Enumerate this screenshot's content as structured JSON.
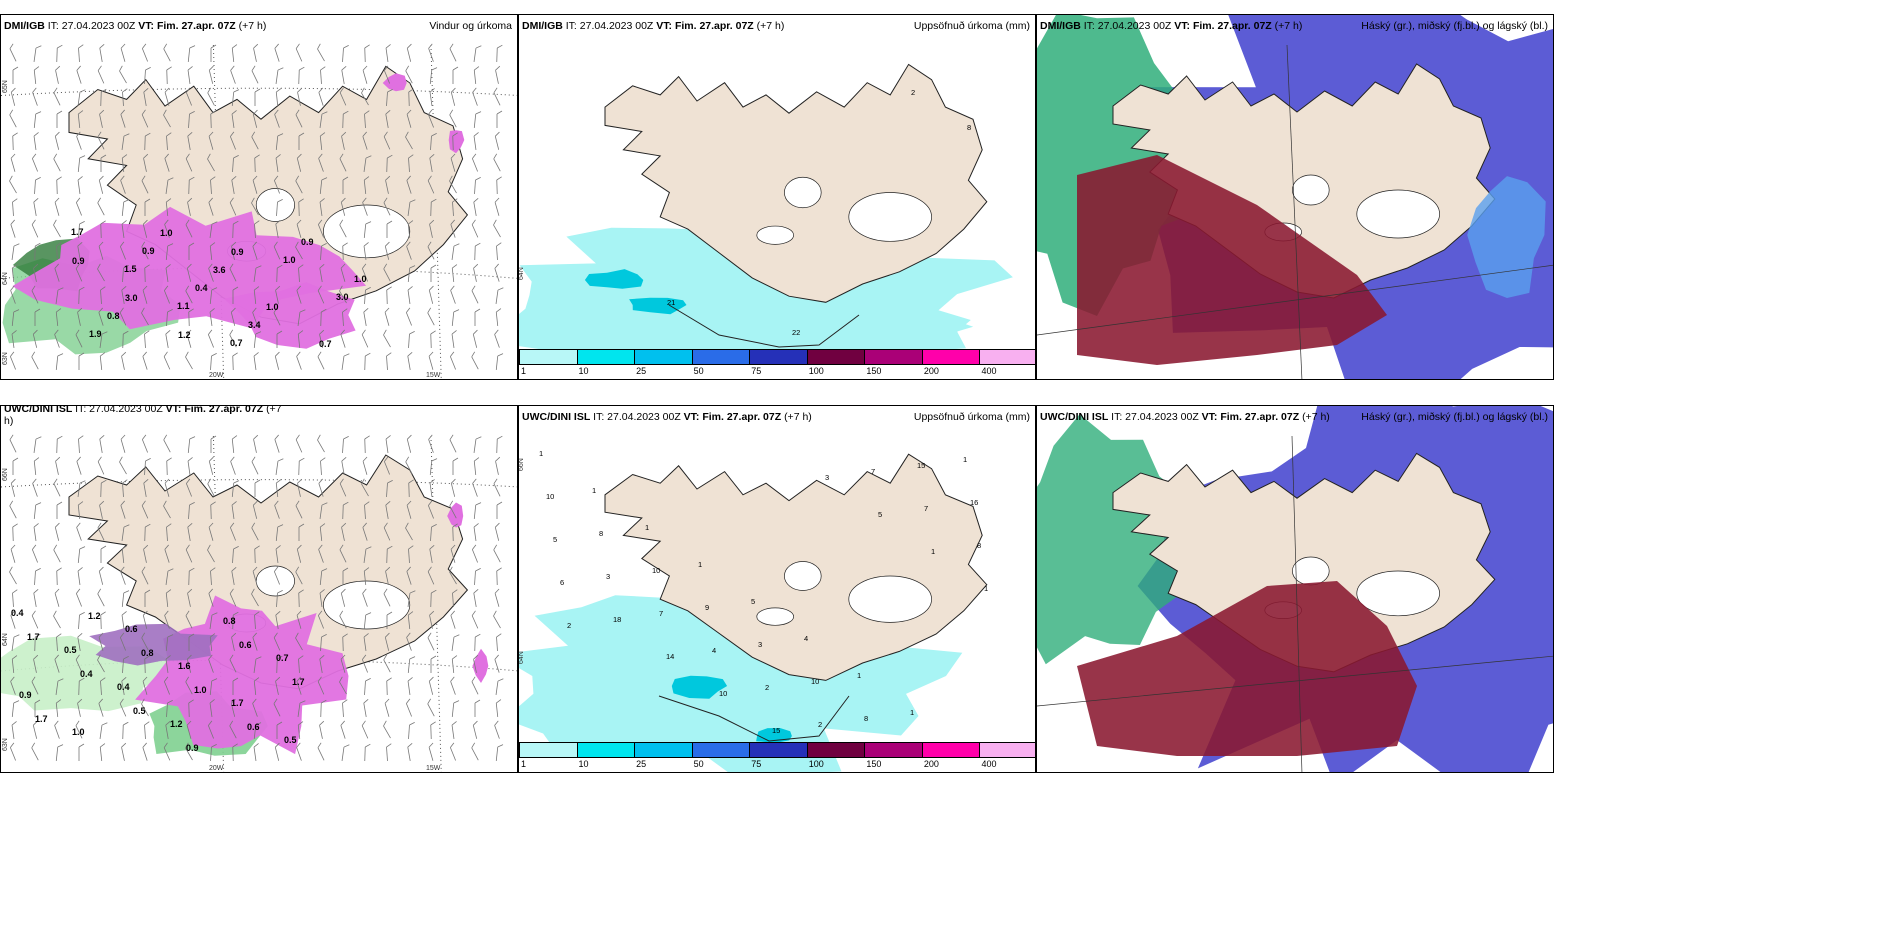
{
  "panels": {
    "top_wind": {
      "left_src": "DMI/IGB",
      "it": "IT: 27.04.2023 00Z",
      "vt_label": "VT:",
      "vt": "Fim. 27.apr. 07Z",
      "lead": "(+7 h)",
      "right": "Vindur og úrkoma",
      "lat_label": "65N",
      "lat_label2": "64N",
      "lat_label3": "63N",
      "lon_label1": "20W",
      "lon_label2": "15W",
      "values": [
        "1.7",
        "1.5",
        "1.1",
        "0.7",
        "1.0",
        "3.0",
        "1.9",
        "0.9",
        "0.4",
        "3.4",
        "0.9",
        "1.0",
        "0.8",
        "1.0",
        "3.6",
        "1.0",
        "0.7",
        "0.9",
        "3.0",
        "1.2",
        "0.9"
      ]
    },
    "top_accum": {
      "left_src": "DMI/IGB",
      "it": "IT: 27.04.2023 00Z",
      "vt_label": "VT:",
      "vt": "Fim. 27.apr. 07Z",
      "lead": "(+7 h)",
      "right": "Uppsöfnuð úrkoma (mm)",
      "lat_label": "64N",
      "values": [
        "2",
        "8",
        "21",
        "22"
      ]
    },
    "top_cloud": {
      "left_src": "DMI/IGB",
      "it": "IT: 27.04.2023 00Z",
      "vt_label": "VT:",
      "vt": "Fim. 27.apr. 07Z",
      "lead": "(+7 h)",
      "right": "Háský (gr.), miðský (fj.bl.) og lágský (bl.)"
    },
    "bot_wind": {
      "left_src": "UWC/DINI ISL",
      "it": "IT: 27.04.2023 00Z",
      "vt_label": "VT:",
      "vt": "Fim. 27.apr. 07Z",
      "lead": "(+7",
      "lead2": "h)",
      "lat_label": "66N",
      "lat_label2": "64N",
      "lat_label3": "63N",
      "lon_label1": "20W",
      "lon_label2": "15W",
      "values": [
        "0.4",
        "0.5",
        "0.4",
        "1.2",
        "0.8",
        "0.7",
        "0.9",
        "1.0",
        "0.6",
        "1.6",
        "1.7",
        "0.5",
        "1.7",
        "0.4",
        "0.5",
        "0.9",
        "0.6",
        "1.7",
        "1.7",
        "1.2",
        "0.8",
        "1.0",
        "0.6"
      ]
    },
    "bot_accum": {
      "left_src": "UWC/DINI ISL",
      "it": "IT: 27.04.2023 00Z",
      "vt_label": "VT:",
      "vt": "Fim. 27.apr. 07Z",
      "lead": "(+7 h)",
      "right": "Uppsöfnuð úrkoma (mm)",
      "lat_label": "66N",
      "lat_label2": "64N",
      "values": [
        "1",
        "1",
        "1",
        "1",
        "5",
        "4",
        "1",
        "1",
        "1",
        "10",
        "8",
        "10",
        "9",
        "3",
        "10",
        "8",
        "15",
        "16",
        "5",
        "3",
        "7",
        "4",
        "2",
        "2",
        "7",
        "7",
        "8",
        "6",
        "18",
        "14",
        "10",
        "15",
        "3",
        "5",
        "1",
        "1",
        "2"
      ]
    },
    "bot_cloud": {
      "left_src": "UWC/DINI ISL",
      "it": "IT: 27.04.2023 00Z",
      "vt_label": "VT:",
      "vt": "Fim. 27.apr. 07Z",
      "lead": "(+7 h)",
      "right": "Háský (gr.), miðský (fj.bl.) og lágský (bl.)"
    }
  },
  "colorbar": {
    "ticks": [
      "1",
      "10",
      "25",
      "50",
      "75",
      "100",
      "150",
      "200",
      "400"
    ],
    "colors": [
      "#b8f7f7",
      "#00e5ee",
      "#00c0ee",
      "#2a6ce8",
      "#2530b8",
      "#700040",
      "#aa0077",
      "#ff00aa",
      "#f8b0f0"
    ]
  },
  "colors": {
    "land": "#efe2d4",
    "precip_pink": "#e070e0",
    "precip_green": "#80d090",
    "accum_cyan": "#a8f4f4",
    "cloud_blue": "#4a4ad0",
    "cloud_red": "#8a1830",
    "cloud_green": "#2fae7a"
  }
}
